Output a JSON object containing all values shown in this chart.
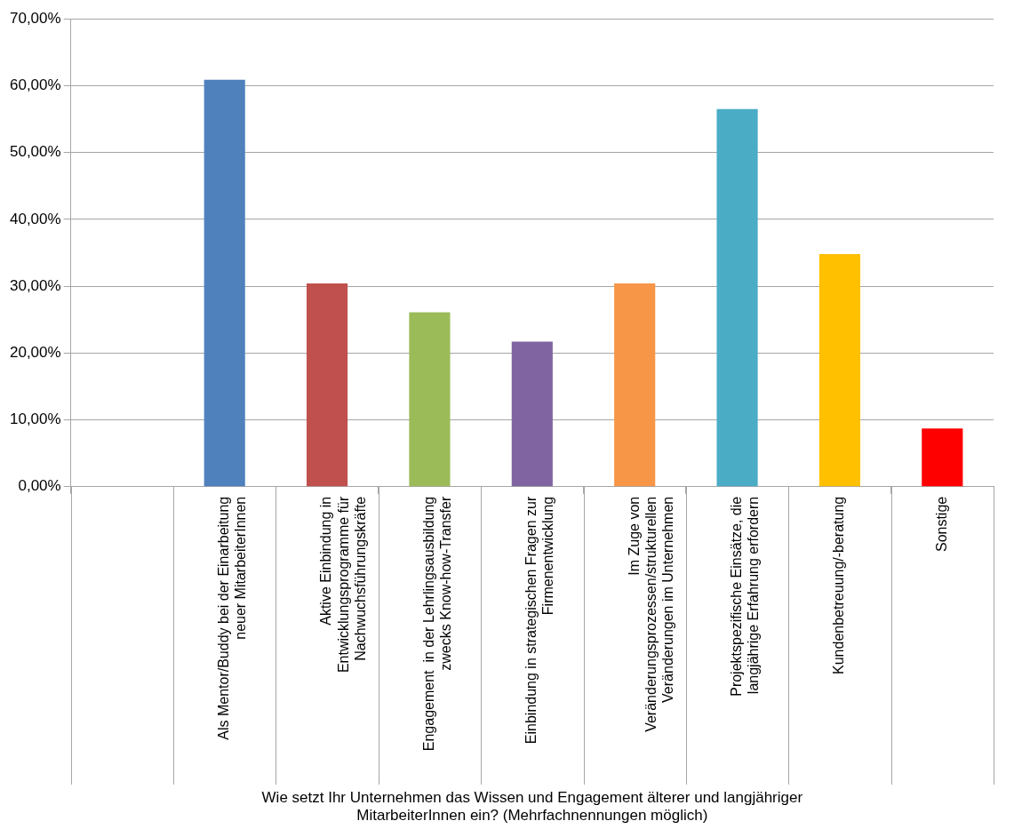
{
  "chart_data": {
    "type": "bar",
    "xlabel": "Wie setzt Ihr Unternehmen das Wissen und Engagement älterer und langjähriger MitarbeiterInnen ein? (Mehrfachnennungen möglich)",
    "categories": [
      null,
      "Als Mentor/Buddy bei der Einarbeitung neuer MitarbeiterInnen",
      "Aktive Einbindung in Entwicklungsprogramme für Nachwuchsführungskräfte",
      "Engagement  in der Lehrlingsausbildung zwecks Know-how-Transfer",
      "Einbindung in strategischen Fragen zur Firmenentwicklung",
      "Im Zuge von Veränderungsprozessen/strukturellen Veränderungen im Unternehmen",
      "Projektspezifische Einsätze, die langjährige Erfahrung erfordern",
      "Kundenbetreuung/-beratung",
      "Sonstige"
    ],
    "values": [
      null,
      60.9,
      30.4,
      26.1,
      21.7,
      30.4,
      56.5,
      34.8,
      8.7
    ],
    "colors": [
      null,
      "#4f81bd",
      "#c0504d",
      "#9bbb59",
      "#8064a2",
      "#f79646",
      "#4bacc6",
      "#ffc000",
      "#ff0000"
    ],
    "ylim": [
      0,
      70
    ],
    "yticks": [
      {
        "value": 0,
        "label": "0,00%"
      },
      {
        "value": 10,
        "label": "10,00%"
      },
      {
        "value": 20,
        "label": "20,00%"
      },
      {
        "value": 30,
        "label": "30,00%"
      },
      {
        "value": 40,
        "label": "40,00%"
      },
      {
        "value": 50,
        "label": "50,00%"
      },
      {
        "value": 60,
        "label": "60,00%"
      },
      {
        "value": 70,
        "label": "70,00%"
      }
    ],
    "grid": "y",
    "legend": false
  }
}
